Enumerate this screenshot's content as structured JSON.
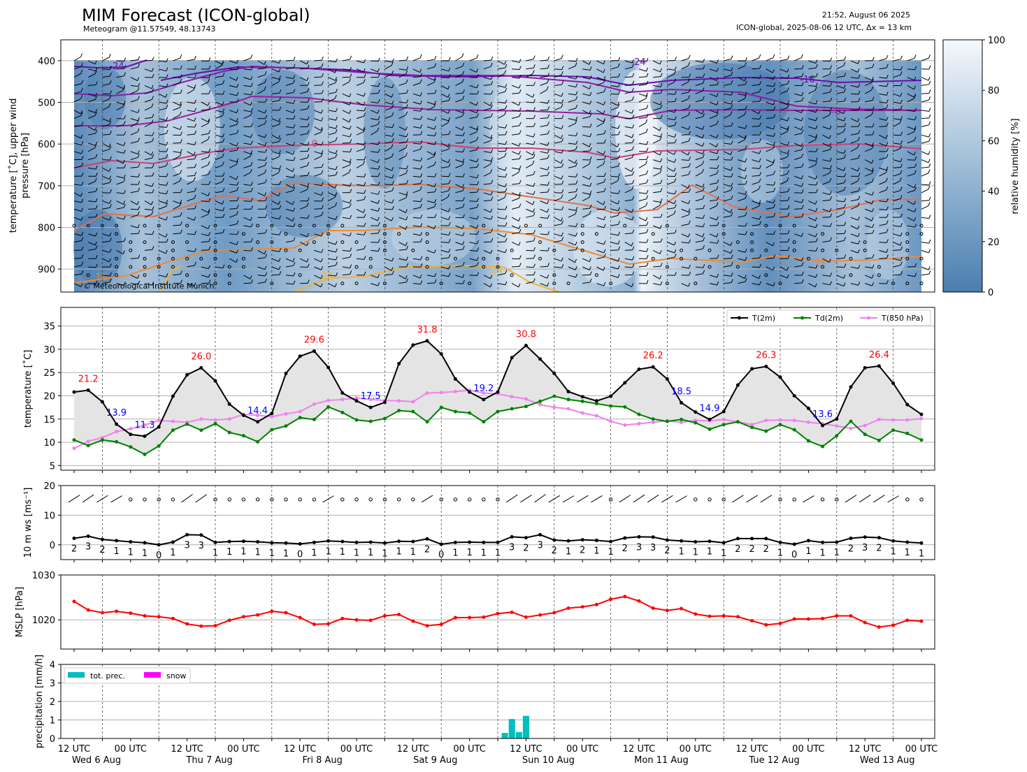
{
  "header": {
    "title": "MIM Forecast (ICON-global)",
    "subtitle": "Meteogram @11.57549, 48.13743",
    "timestamp": "21:52, August 06 2025",
    "model_run": "ICON-global, 2025-08-06 12 UTC, Δx = 13 km",
    "copyright": "© Meteorological Institute Munich"
  },
  "x_axis": {
    "tick_labels": [
      "12 UTC",
      "00 UTC",
      "12 UTC",
      "00 UTC",
      "12 UTC",
      "00 UTC",
      "12 UTC",
      "00 UTC",
      "12 UTC",
      "00 UTC",
      "12 UTC",
      "00 UTC",
      "12 UTC",
      "00 UTC",
      "12 UTC",
      "00 UTC"
    ],
    "day_labels": [
      "Wed 6 Aug",
      "Thu 7 Aug",
      "Fri 8 Aug",
      "Sat 9 Aug",
      "Sun 10 Aug",
      "Mon 11 Aug",
      "Tue 12 Aug",
      "Wed 13 Aug"
    ]
  },
  "chart_data": [
    {
      "type": "heatmap",
      "name": "upper_air",
      "ylabel": "temperature [˚C], upper wind\npressure [hPa]",
      "yticks": [
        400,
        500,
        600,
        700,
        800,
        900
      ],
      "ylim": [
        955,
        350
      ],
      "colorbar": {
        "label": "relative humidity [%]",
        "ticks": [
          0,
          20,
          40,
          60,
          80,
          100
        ],
        "low_color": "#4a7eb0",
        "high_color": "#f5f9fc"
      },
      "isotherm_labels": [
        {
          "text": "-24",
          "color": "#6a0dad"
        },
        {
          "text": "-24",
          "color": "#6a0dad"
        },
        {
          "text": "-16",
          "color": "#6a0dad"
        },
        {
          "text": "-8",
          "color": "#9b1f9b"
        },
        {
          "text": "0",
          "color": "#c8407a"
        },
        {
          "text": "16",
          "color": "#f08a30"
        },
        {
          "text": "24",
          "color": "#f2b233"
        },
        {
          "text": "24",
          "color": "#f2b233"
        },
        {
          "text": "16",
          "color": "#f08a30"
        }
      ]
    },
    {
      "type": "line",
      "name": "temperature",
      "ylabel": "temperature [˚C]",
      "ylim": [
        4,
        39
      ],
      "yticks": [
        5,
        10,
        15,
        20,
        25,
        30,
        35
      ],
      "x": [
        0,
        6,
        12,
        18,
        24,
        30,
        36,
        42,
        48,
        54,
        60,
        66,
        72,
        78,
        84,
        90,
        96,
        102,
        108,
        114,
        120,
        126,
        132,
        138,
        144,
        150,
        156,
        162,
        168,
        174,
        180,
        186,
        192,
        198,
        204,
        210,
        216,
        222,
        228,
        234,
        240,
        246,
        252,
        258,
        264,
        270,
        276,
        282,
        288,
        294,
        300,
        306,
        312,
        318,
        324,
        330,
        336,
        342,
        348,
        354,
        360
      ],
      "series": [
        {
          "name": "T(2m)",
          "color": "#000000",
          "values": [
            20.8,
            21.2,
            18.7,
            13.9,
            11.7,
            11.3,
            13.3,
            19.9,
            24.5,
            26.0,
            23.2,
            18.2,
            15.8,
            14.4,
            16.2,
            24.8,
            28.5,
            29.6,
            26.1,
            20.6,
            18.9,
            17.5,
            18.6,
            26.9,
            30.9,
            31.8,
            29.0,
            23.6,
            20.8,
            19.2,
            20.8,
            28.2,
            30.8,
            27.9,
            24.8,
            20.9,
            19.8,
            18.9,
            19.9,
            22.8,
            25.7,
            26.2,
            23.6,
            18.5,
            16.5,
            14.9,
            16.6,
            22.3,
            25.8,
            26.3,
            24.0,
            20.0,
            17.3,
            13.6,
            15.0,
            21.9,
            26.0,
            26.4,
            22.7,
            18.1,
            16.0
          ]
        },
        {
          "name": "Td(2m)",
          "color": "#008000",
          "values": [
            10.5,
            9.3,
            10.5,
            10.1,
            9.0,
            7.4,
            9.2,
            12.6,
            13.9,
            12.6,
            14.0,
            12.1,
            11.4,
            10.1,
            12.7,
            13.5,
            15.3,
            14.9,
            17.6,
            16.4,
            14.8,
            14.5,
            15.1,
            16.8,
            16.6,
            14.4,
            17.5,
            16.6,
            16.3,
            14.4,
            16.6,
            17.2,
            17.7,
            18.8,
            19.9,
            19.2,
            18.8,
            18.3,
            17.8,
            17.6,
            16.0,
            15.0,
            14.5,
            14.9,
            14.2,
            12.8,
            13.8,
            14.4,
            13.2,
            12.4,
            13.8,
            12.7,
            10.3,
            9.1,
            11.4,
            14.5,
            11.7,
            10.4,
            12.6,
            11.9,
            10.5
          ]
        },
        {
          "name": "T(850 hPa)",
          "color": "#ee82ee",
          "values": [
            8.7,
            10.2,
            11.0,
            12.3,
            12.9,
            13.7,
            14.7,
            14.5,
            14.3,
            15.0,
            14.8,
            15.0,
            16.0,
            15.8,
            15.5,
            16.1,
            16.6,
            18.2,
            19.0,
            19.2,
            19.5,
            19.2,
            19.0,
            18.9,
            18.7,
            20.6,
            20.7,
            20.9,
            21.2,
            20.6,
            20.4,
            19.8,
            19.3,
            18.1,
            17.5,
            17.2,
            16.3,
            15.7,
            14.5,
            13.7,
            14.0,
            14.3,
            14.6,
            14.3,
            14.7,
            14.6,
            14.9,
            14.4,
            13.8,
            14.7,
            14.8,
            14.7,
            14.3,
            14.0,
            13.5,
            13.0,
            13.6,
            14.9,
            14.8,
            14.8,
            15.1
          ]
        }
      ],
      "annotations": [
        {
          "text": "21.2",
          "x": 6,
          "y": 21.2,
          "color": "red"
        },
        {
          "text": "13.9",
          "x": 18,
          "y": 13.9,
          "color": "blue"
        },
        {
          "text": "11.3",
          "x": 30,
          "y": 11.3,
          "color": "blue"
        },
        {
          "text": "26.0",
          "x": 54,
          "y": 26.0,
          "color": "red"
        },
        {
          "text": "14.4",
          "x": 78,
          "y": 14.4,
          "color": "blue"
        },
        {
          "text": "29.6",
          "x": 102,
          "y": 29.6,
          "color": "red"
        },
        {
          "text": "17.5",
          "x": 126,
          "y": 17.5,
          "color": "blue"
        },
        {
          "text": "31.8",
          "x": 150,
          "y": 31.8,
          "color": "red"
        },
        {
          "text": "19.2",
          "x": 174,
          "y": 19.2,
          "color": "blue"
        },
        {
          "text": "30.8",
          "x": 192,
          "y": 30.8,
          "color": "red"
        },
        {
          "text": "26.2",
          "x": 246,
          "y": 26.2,
          "color": "red"
        },
        {
          "text": "18.5",
          "x": 258,
          "y": 18.5,
          "color": "blue"
        },
        {
          "text": "14.9",
          "x": 270,
          "y": 14.9,
          "color": "blue"
        },
        {
          "text": "26.3",
          "x": 294,
          "y": 26.3,
          "color": "red"
        },
        {
          "text": "13.6",
          "x": 318,
          "y": 13.6,
          "color": "blue"
        },
        {
          "text": "26.4",
          "x": 342,
          "y": 26.4,
          "color": "red"
        }
      ]
    },
    {
      "type": "line",
      "name": "wind",
      "ylabel": "10 m ws [ms⁻¹]",
      "ylim": [
        -5,
        20
      ],
      "yticks": [
        0,
        10,
        20
      ],
      "series": [
        {
          "name": "ws",
          "color": "#000000",
          "values": [
            2.2,
            2.9,
            1.8,
            1.4,
            1.0,
            0.7,
            0.0,
            0.9,
            3.4,
            3.3,
            0.8,
            1.1,
            1.2,
            1.0,
            0.7,
            0.6,
            0.3,
            0.8,
            1.3,
            1.1,
            0.8,
            0.9,
            0.6,
            1.2,
            1.1,
            2.0,
            0.2,
            0.8,
            0.9,
            0.8,
            0.8,
            2.7,
            2.4,
            3.4,
            1.6,
            1.3,
            1.7,
            1.5,
            1.1,
            2.3,
            2.7,
            2.6,
            1.6,
            1.3,
            1.0,
            1.2,
            0.7,
            2.1,
            2.1,
            2.1,
            0.8,
            0.2,
            1.4,
            0.8,
            0.9,
            2.2,
            2.6,
            2.4,
            1.3,
            0.9,
            0.6
          ]
        }
      ],
      "value_labels": [
        "2",
        "3",
        "2",
        "1",
        "1",
        "1",
        "0",
        "1",
        "3",
        "3",
        "1",
        "1",
        "1",
        "1",
        "1",
        "1",
        "0",
        "1",
        "1",
        "1",
        "1",
        "1",
        "1",
        "1",
        "1",
        "2",
        "0",
        "1",
        "1",
        "1",
        "1",
        "3",
        "2",
        "3",
        "2",
        "1",
        "2",
        "1",
        "1",
        "2",
        "3",
        "3",
        "2",
        "1",
        "1",
        "1",
        "1",
        "2",
        "2",
        "2",
        "1",
        "0",
        "1",
        "1",
        "1",
        "2",
        "3",
        "2",
        "1",
        "1",
        "1"
      ]
    },
    {
      "type": "line",
      "name": "mslp",
      "ylabel": "MSLP [hPa]",
      "ylim": [
        1013.5,
        1030
      ],
      "yticks": [
        1020,
        1030
      ],
      "series": [
        {
          "name": "MSLP",
          "color": "#ff0000",
          "values": [
            1024.1,
            1022.2,
            1021.6,
            1021.9,
            1021.5,
            1020.9,
            1020.7,
            1020.3,
            1019.1,
            1018.6,
            1018.7,
            1019.9,
            1020.7,
            1021.1,
            1021.9,
            1021.6,
            1020.5,
            1019.0,
            1019.1,
            1020.3,
            1020.0,
            1019.9,
            1020.9,
            1021.2,
            1019.7,
            1018.7,
            1019.0,
            1020.5,
            1020.5,
            1020.6,
            1021.4,
            1021.7,
            1020.6,
            1021.1,
            1021.6,
            1022.6,
            1022.9,
            1023.4,
            1024.6,
            1025.2,
            1024.2,
            1022.6,
            1022.1,
            1022.5,
            1021.3,
            1020.8,
            1020.9,
            1020.7,
            1019.8,
            1018.9,
            1019.2,
            1020.2,
            1020.2,
            1020.3,
            1020.9,
            1020.9,
            1019.4,
            1018.4,
            1018.8,
            1019.9,
            1019.7
          ]
        }
      ]
    },
    {
      "type": "bar",
      "name": "precipitation",
      "ylabel": "precipitation [mm/h]",
      "ylim": [
        0,
        4
      ],
      "yticks": [
        0,
        1,
        2,
        3,
        4
      ],
      "legend": [
        {
          "name": "tot. prec.",
          "color": "#00bfbf"
        },
        {
          "name": "snow",
          "color": "#ff00ff"
        }
      ],
      "bars": [
        {
          "x": 183,
          "value": 0.3
        },
        {
          "x": 186,
          "value": 1.05
        },
        {
          "x": 189,
          "value": 0.35
        },
        {
          "x": 192,
          "value": 1.22
        }
      ]
    }
  ]
}
